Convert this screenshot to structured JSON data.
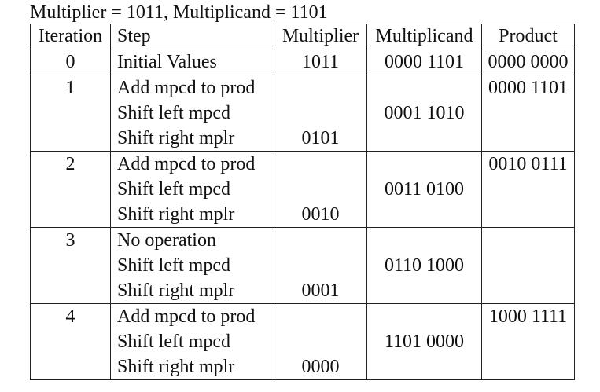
{
  "caption": "Multiplier = 1011, Multiplicand = 1101",
  "headers": {
    "iteration": "Iteration",
    "step": "Step",
    "multiplier": "Multiplier",
    "multiplicand": "Multiplicand",
    "product": "Product"
  },
  "rows": [
    {
      "iteration": "0",
      "step": "Initial Values",
      "multiplier": "1011",
      "multiplicand": "0000 1101",
      "product": "0000 0000"
    },
    {
      "iteration": "1",
      "step": "Add mpcd to prod",
      "multiplier": "",
      "multiplicand": "",
      "product": "0000 1101"
    },
    {
      "iteration": "",
      "step": "Shift left mpcd",
      "multiplier": "",
      "multiplicand": "0001 1010",
      "product": ""
    },
    {
      "iteration": "",
      "step": "Shift right mplr",
      "multiplier": "0101",
      "multiplicand": "",
      "product": ""
    },
    {
      "iteration": "2",
      "step": "Add mpcd to prod",
      "multiplier": "",
      "multiplicand": "",
      "product": "0010 0111"
    },
    {
      "iteration": "",
      "step": "Shift left mpcd",
      "multiplier": "",
      "multiplicand": "0011 0100",
      "product": ""
    },
    {
      "iteration": "",
      "step": "Shift right mplr",
      "multiplier": "0010",
      "multiplicand": "",
      "product": ""
    },
    {
      "iteration": "3",
      "step": "No operation",
      "multiplier": "",
      "multiplicand": "",
      "product": ""
    },
    {
      "iteration": "",
      "step": "Shift left mpcd",
      "multiplier": "",
      "multiplicand": "0110 1000",
      "product": ""
    },
    {
      "iteration": "",
      "step": "Shift right mplr",
      "multiplier": "0001",
      "multiplicand": "",
      "product": ""
    },
    {
      "iteration": "4",
      "step": "Add mpcd to prod",
      "multiplier": "",
      "multiplicand": "",
      "product": "1000 1111"
    },
    {
      "iteration": "",
      "step": "Shift left mpcd",
      "multiplier": "",
      "multiplicand": "1101 0000",
      "product": ""
    },
    {
      "iteration": "",
      "step": "Shift right mplr",
      "multiplier": "0000",
      "multiplicand": "",
      "product": ""
    }
  ]
}
